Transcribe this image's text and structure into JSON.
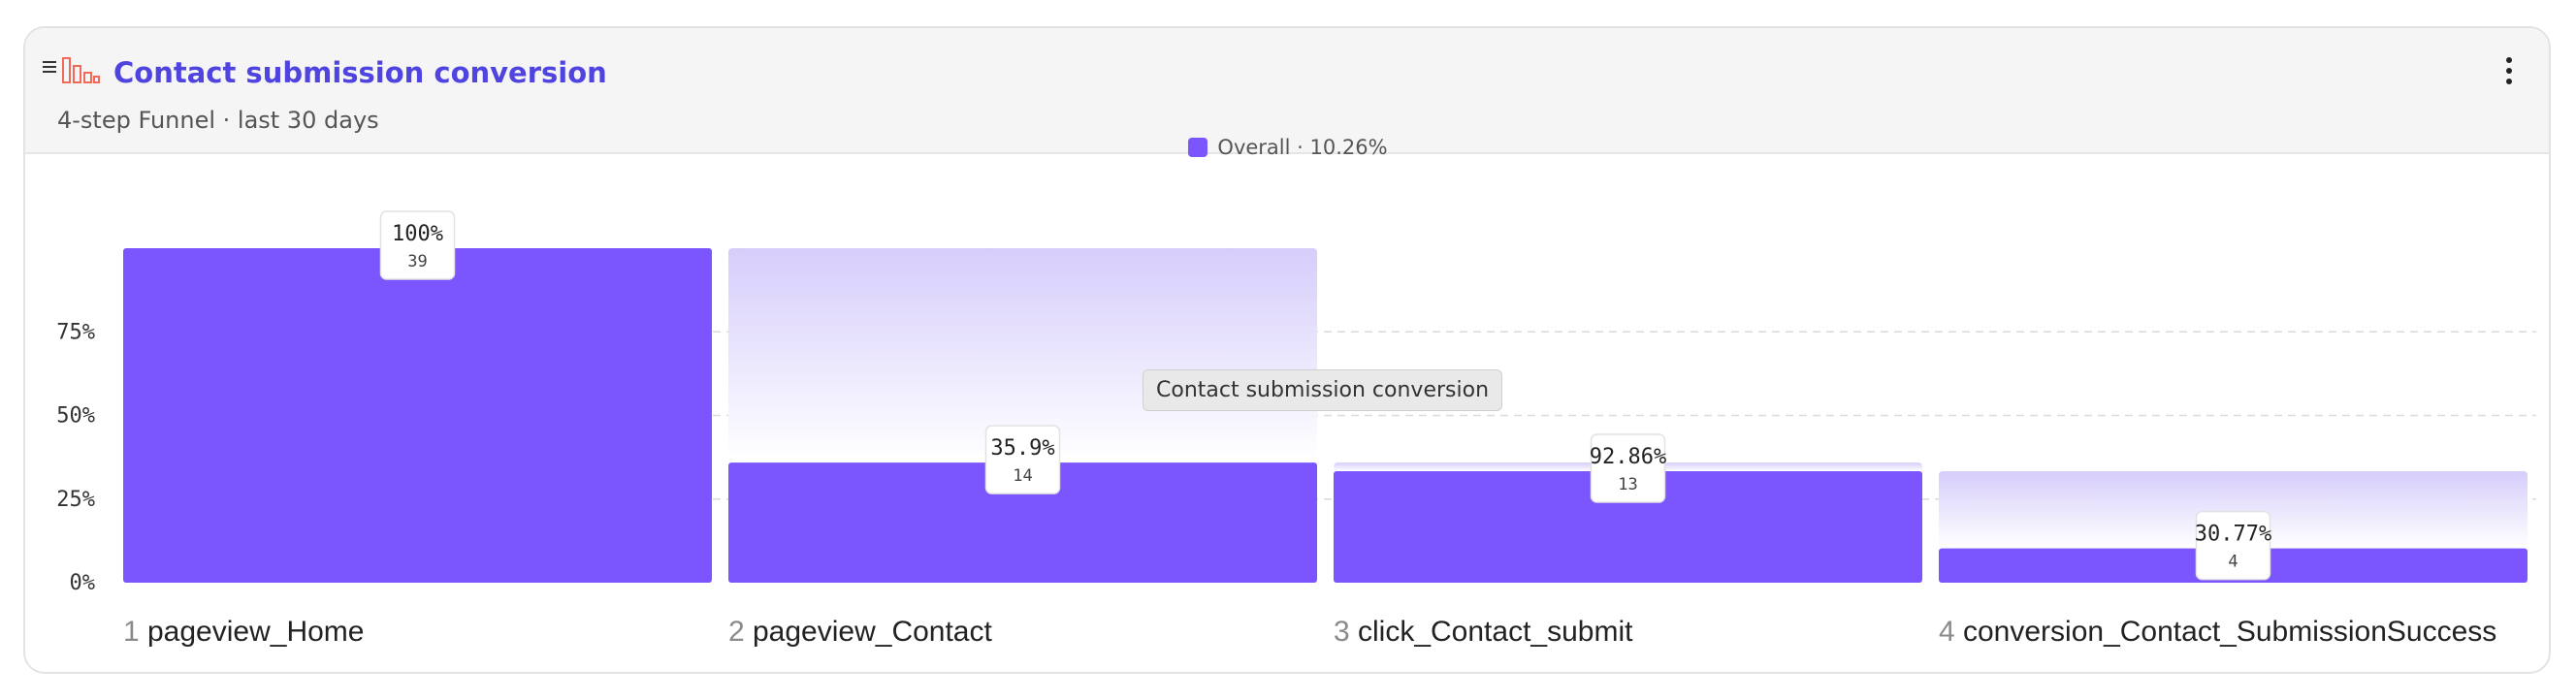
{
  "header": {
    "title": "Contact submission conversion",
    "subtitle": "4-step Funnel · last 30 days"
  },
  "legend": {
    "label": "Overall · 10.26%",
    "color": "#7b56ff"
  },
  "tooltip": "Contact submission conversion",
  "colors": {
    "bar": "#7b56ff",
    "ghost": "#d6cdfb",
    "grid": "#d9d9de",
    "title": "#4f44e0"
  },
  "icons": [
    "drag-handle-icon",
    "funnel-chart-icon",
    "more-vertical-icon"
  ],
  "chart_data": {
    "type": "bar",
    "title": "Contact submission conversion",
    "subtitle": "4-step Funnel · last 30 days",
    "ylim": [
      0,
      100
    ],
    "y_ticks": [
      "0%",
      "25%",
      "50%",
      "75%"
    ],
    "grid": true,
    "legend_position": "top-center",
    "series": [
      {
        "name": "Overall · 10.26%",
        "values": [
          100,
          35.9,
          33.33,
          10.26
        ]
      }
    ],
    "steps": [
      {
        "num": "1",
        "name": "pageview_Home",
        "overall": 100,
        "prev_overall": 100,
        "label": "100%",
        "count": "39"
      },
      {
        "num": "2",
        "name": "pageview_Contact",
        "overall": 35.9,
        "prev_overall": 100,
        "label": "35.9%",
        "count": "14"
      },
      {
        "num": "3",
        "name": "click_Contact_submit",
        "overall": 33.33,
        "prev_overall": 35.9,
        "label": "92.86%",
        "count": "13"
      },
      {
        "num": "4",
        "name": "conversion_Contact_SubmissionSuccess",
        "overall": 10.26,
        "prev_overall": 33.33,
        "label": "30.77%",
        "count": "4"
      }
    ]
  }
}
